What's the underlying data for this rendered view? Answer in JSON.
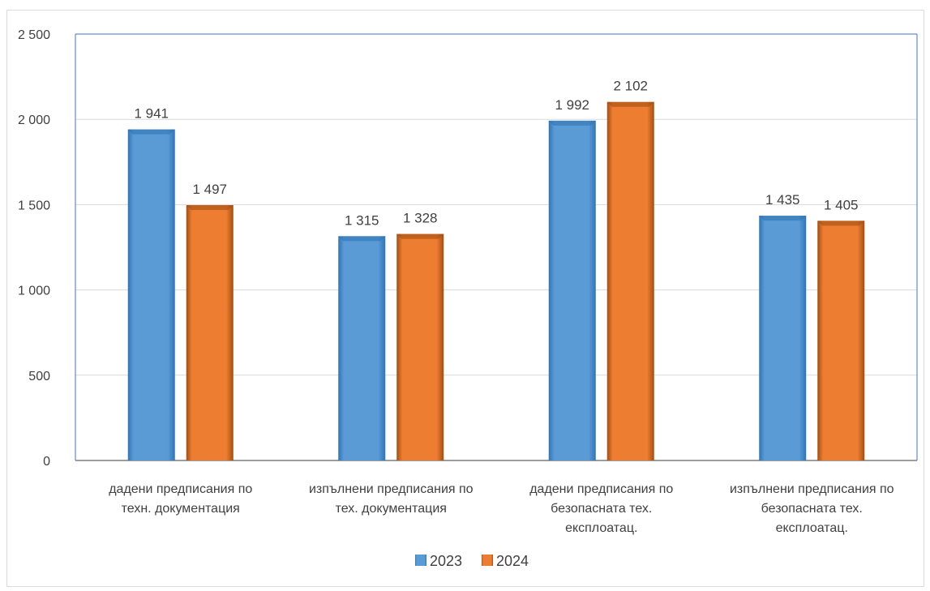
{
  "chart_data": {
    "type": "bar",
    "categories": [
      [
        "дадени предписания по",
        "техн. документация"
      ],
      [
        "изпълнени предписания по",
        "тех. документация"
      ],
      [
        "дадени предписания по",
        "безопасната тех.",
        "експлоатац."
      ],
      [
        "изпълнени предписания по",
        "безопасната тех.",
        "експлоатац."
      ]
    ],
    "series": [
      {
        "name": "2023",
        "values": [
          1941,
          1315,
          1992,
          1435
        ],
        "labels": [
          "1 941",
          "1 315",
          "1 992",
          "1 435"
        ],
        "color": "#5b9bd5",
        "color_dark": "#2e75b6"
      },
      {
        "name": "2024",
        "values": [
          1497,
          1328,
          2102,
          1405
        ],
        "labels": [
          "1 497",
          "1 328",
          "2 102",
          "1 405"
        ],
        "color": "#ed7d31",
        "color_dark": "#a44e12"
      }
    ],
    "ylim": [
      0,
      2500
    ],
    "yticks": [
      0,
      500,
      1000,
      1500,
      2000,
      2500
    ],
    "ytick_labels": [
      "0",
      "500",
      "1 000",
      "1 500",
      "2 000",
      "2 500"
    ],
    "grid": true,
    "legend": "bottom",
    "title": "",
    "xlabel": "",
    "ylabel": ""
  }
}
